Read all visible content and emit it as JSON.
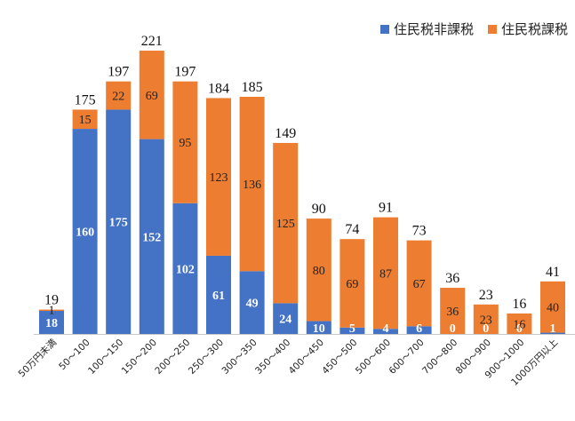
{
  "chart_data": {
    "type": "bar",
    "stacked": true,
    "categories": [
      "50万円未満",
      "50～100",
      "100～150",
      "150～200",
      "200～250",
      "250～300",
      "300～350",
      "350～400",
      "400～450",
      "450～500",
      "500～600",
      "600～700",
      "700～800",
      "800～900",
      "900～1000",
      "1000万円以上"
    ],
    "series": [
      {
        "name": "住民税非課税",
        "color": "#4472C4",
        "values": [
          18,
          160,
          175,
          152,
          102,
          61,
          49,
          24,
          10,
          5,
          4,
          6,
          0,
          0,
          0,
          1
        ]
      },
      {
        "name": "住民税課税",
        "color": "#ED7D31",
        "values": [
          1,
          15,
          22,
          69,
          95,
          123,
          136,
          125,
          80,
          69,
          87,
          67,
          36,
          23,
          16,
          40
        ]
      }
    ],
    "totals": [
      19,
      175,
      197,
      221,
      197,
      184,
      185,
      149,
      90,
      74,
      91,
      73,
      36,
      23,
      16,
      41
    ],
    "ylim": [
      0,
      235
    ],
    "legend_position": "top-right",
    "grid": false
  }
}
